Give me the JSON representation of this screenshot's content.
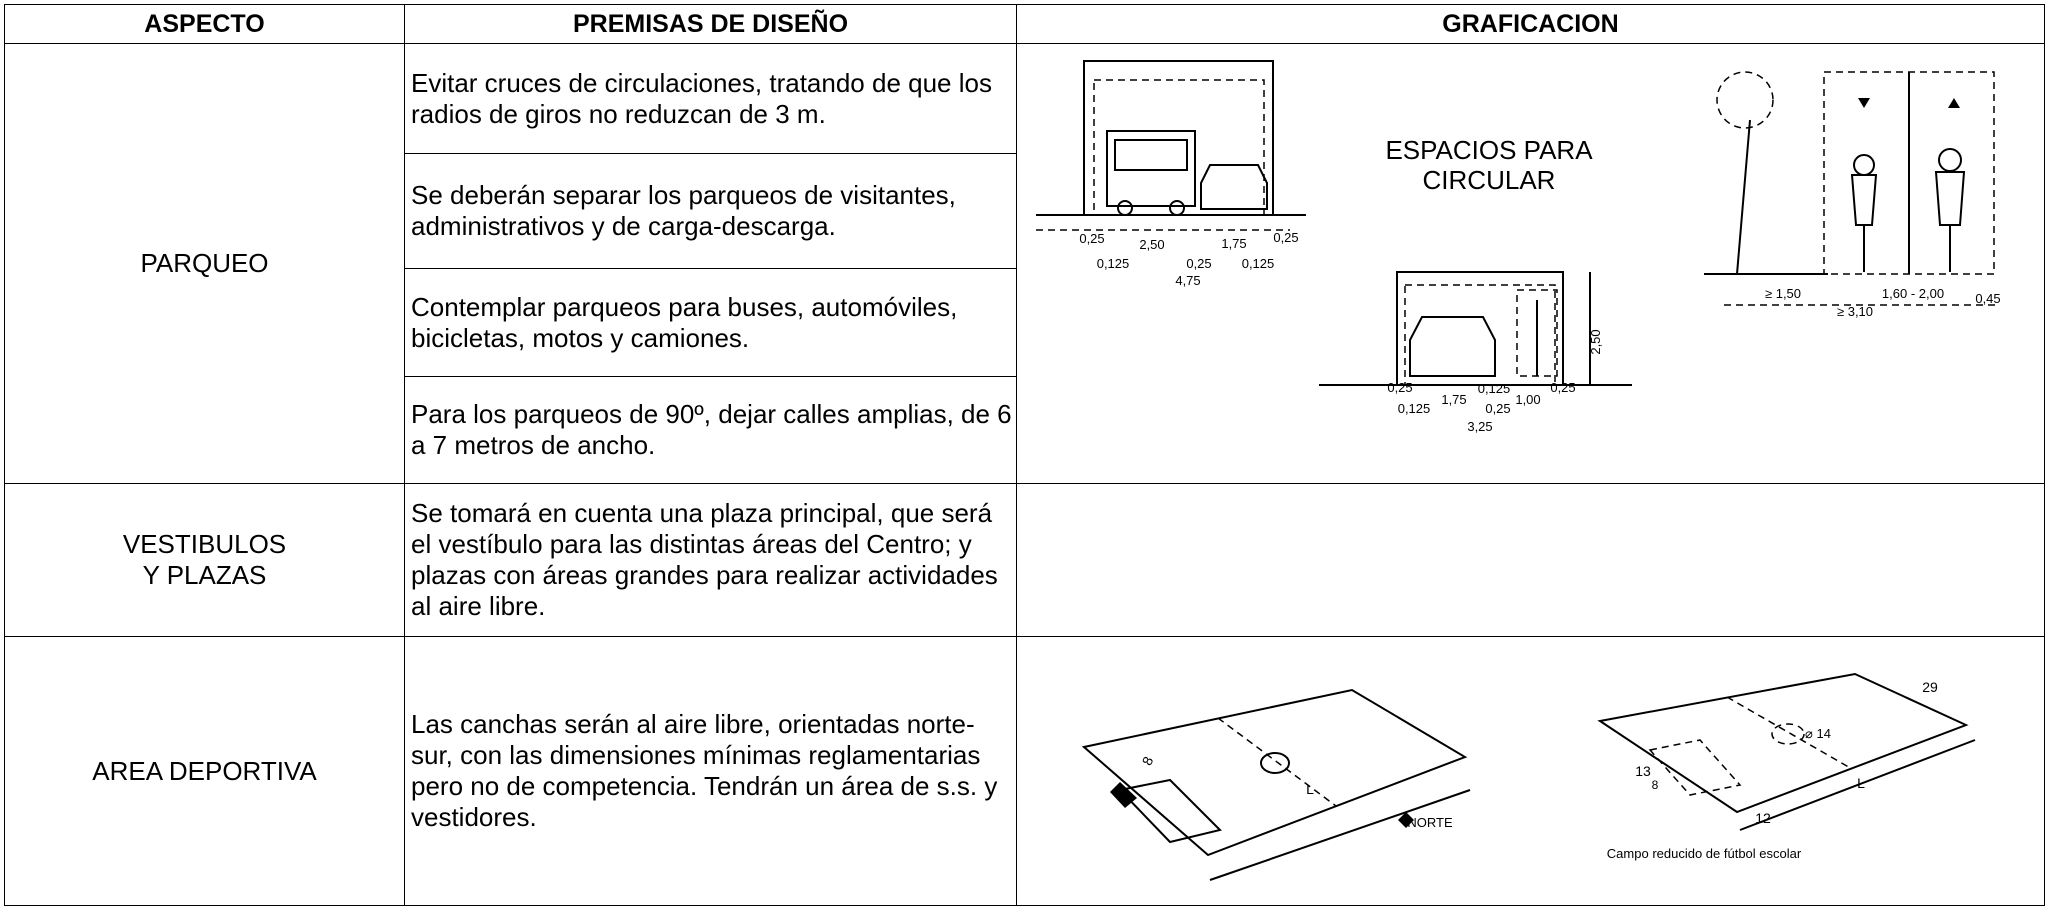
{
  "table": {
    "headers": [
      "ASPECTO",
      "PREMISAS DE DISEÑO",
      "GRAFICACION"
    ],
    "rows": [
      {
        "aspecto": "PARQUEO",
        "premisas": [
          "Evitar cruces de circulaciones, tratando de que los radios de giros no reduzcan de 3 m.",
          "Se deberán separar los parqueos de visitantes, administrativos y de carga-descarga.",
          "Contemplar parqueos para buses, automóviles, bicicletas, motos y camiones.",
          "Para los parqueos de 90º, dejar calles amplias, de 6 a 7 metros de ancho."
        ],
        "graficacion": [
          "ESPACIOS PARA",
          "CIRCULAR",
          "0,25",
          "2,50",
          "1,75",
          "0,25",
          "0,125",
          "0,25",
          "0,125",
          "4,75",
          "2,50",
          "0,25",
          "1,75",
          "0,125",
          "1,00",
          "0,25",
          "0,125",
          "0,25",
          "3,25",
          "≥ 1,50",
          "1,60 - 2,00",
          "0,45",
          "≥ 3,10"
        ]
      },
      {
        "aspecto": "VESTIBULOS Y PLAZAS",
        "premisas": [
          "Se tomará en cuenta una plaza principal, que será el vestíbulo para las distintas áreas del Centro; y plazas con áreas grandes para realizar actividades al aire libre."
        ]
      },
      {
        "aspecto": "AREA DEPORTIVA",
        "premisas": [
          "Las canchas serán al aire libre, orientadas norte-sur, con las dimensiones mínimas reglamentarias pero no de competencia. Tendrán un área de s.s. y vestidores."
        ],
        "graficacion": [
          "NORTE",
          "Campo reducido de fútbol escolar",
          "L",
          "8",
          "13",
          "8",
          "12",
          "L",
          "29",
          "⌀ 14"
        ]
      }
    ]
  }
}
